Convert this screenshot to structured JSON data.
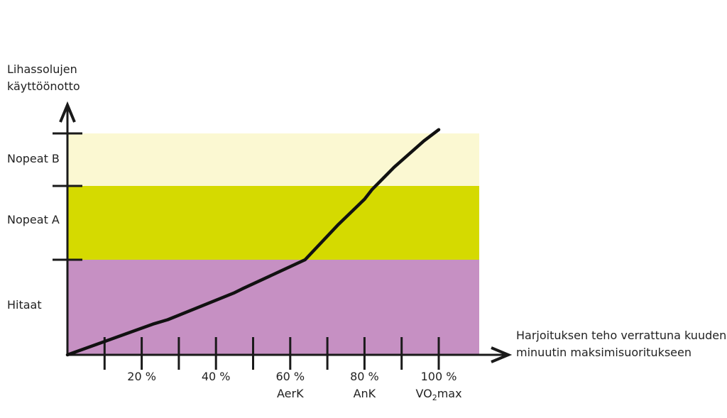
{
  "chart_data": {
    "type": "line",
    "ylabel": [
      "Lihassolujen",
      "käyttöönotto"
    ],
    "xlabel": [
      "Harjoituksen teho verrattuna kuuden",
      "minuutin maksimisuoritukseen"
    ],
    "bands": [
      {
        "name": "Hitaat",
        "from": 0,
        "to": 1.3,
        "color": "#c690c3"
      },
      {
        "name": "Nopeat A",
        "from": 1.3,
        "to": 2.3,
        "color": "#d5da00"
      },
      {
        "name": "Nopeat B",
        "from": 2.3,
        "to": 3.0,
        "color": "#fbf8d2"
      }
    ],
    "xlim": [
      0,
      110
    ],
    "ylim": [
      0,
      3.0
    ],
    "x_minor_ticks": [
      10,
      30,
      50,
      70,
      90
    ],
    "x_ticks": [
      {
        "x": 20,
        "label": "20 %",
        "sublabel": ""
      },
      {
        "x": 40,
        "label": "40 %",
        "sublabel": ""
      },
      {
        "x": 60,
        "label": "60 %",
        "sublabel": "AerK"
      },
      {
        "x": 80,
        "label": "80 %",
        "sublabel": "AnK"
      },
      {
        "x": 100,
        "label": "100 %",
        "sublabel": "VO2max"
      }
    ],
    "line_color": "#111111",
    "series": [
      {
        "x": [
          0,
          23,
          27,
          45,
          47,
          64,
          73,
          80,
          82,
          88,
          96,
          100
        ],
        "y": [
          0,
          0.42,
          0.48,
          0.85,
          0.9,
          1.3,
          1.78,
          2.12,
          2.25,
          2.55,
          2.9,
          3.05
        ]
      }
    ]
  }
}
